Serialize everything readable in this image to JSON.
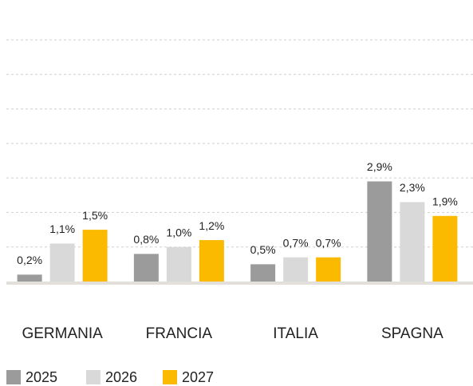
{
  "chart_data": {
    "type": "bar",
    "categories": [
      "GERMANIA",
      "FRANCIA",
      "ITALIA",
      "SPAGNA"
    ],
    "series": [
      {
        "name": "2025",
        "color": "#9b9b9b",
        "values": [
          0.2,
          0.8,
          0.5,
          2.9
        ],
        "value_labels": [
          "0,2%",
          "0,8%",
          "0,5%",
          "2,9%"
        ]
      },
      {
        "name": "2026",
        "color": "#d9d9d9",
        "values": [
          1.1,
          1.0,
          0.7,
          2.3
        ],
        "value_labels": [
          "1,1%",
          "1,0%",
          "0,7%",
          "2,3%"
        ]
      },
      {
        "name": "2027",
        "color": "#fbb900",
        "values": [
          1.5,
          1.2,
          0.7,
          1.9
        ],
        "value_labels": [
          "1,5%",
          "1,2%",
          "0,7%",
          "1,9%"
        ]
      }
    ],
    "ylim": [
      0,
      7
    ],
    "yticks": [
      0,
      1,
      2,
      3,
      4,
      5,
      6,
      7
    ],
    "grid": true,
    "legend": "bottom-left"
  }
}
